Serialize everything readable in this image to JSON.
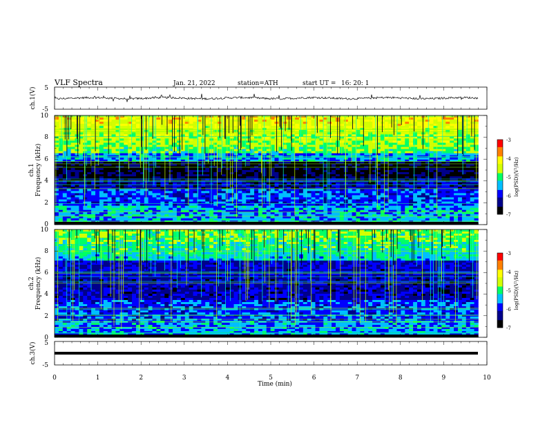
{
  "header": {
    "title": "VLF Spectra",
    "date": "Jan. 21, 2022",
    "station": "station=ATH",
    "start_label": "start UT =",
    "start_time": "16: 20: 1"
  },
  "chart_data": [
    {
      "type": "line",
      "ylabel": "ch.1(V)",
      "ylim": [
        -5,
        5
      ],
      "yticks": [
        "5",
        "-5"
      ],
      "baseline": 0
    },
    {
      "type": "heatmap",
      "ylabel_top": "ch.1",
      "ylabel": "Frequency (kHz)",
      "ylim": [
        0,
        10
      ],
      "yticks": [
        "0",
        "2",
        "4",
        "6",
        "8",
        "10"
      ],
      "colorbar": {
        "label": "log(PSD)(V²/Hz)",
        "range": [
          -7,
          -3
        ],
        "ticks": [
          "-3",
          "-4",
          "-5",
          "-6",
          "-7"
        ]
      }
    },
    {
      "type": "heatmap",
      "ylabel_top": "ch.2",
      "ylabel": "Frequency (kHz)",
      "ylim": [
        0,
        10
      ],
      "yticks": [
        "0",
        "2",
        "4",
        "6",
        "8",
        "10"
      ],
      "colorbar": {
        "label": "log(PSD)(V²/Hz)",
        "range": [
          -7,
          -3
        ],
        "ticks": [
          "-3",
          "-4",
          "-5",
          "-6",
          "-7"
        ]
      }
    },
    {
      "type": "line",
      "ylabel": "ch.3(V)",
      "ylim": [
        -5,
        5
      ],
      "yticks": [
        "5",
        "-5"
      ],
      "baseline": 0
    }
  ],
  "xaxis": {
    "label": "Time (min)",
    "xlim": [
      0,
      10
    ],
    "ticks": [
      "0",
      "1",
      "2",
      "3",
      "4",
      "5",
      "6",
      "7",
      "8",
      "9",
      "10"
    ],
    "data_end": 9.8
  },
  "colors": {
    "ink": "#000000",
    "colormap": [
      "#000000",
      "#00008b",
      "#0000ff",
      "#00bfff",
      "#00ff66",
      "#d4ff00",
      "#ffff00",
      "#ff8000",
      "#ff0000",
      "#ffffff"
    ]
  }
}
